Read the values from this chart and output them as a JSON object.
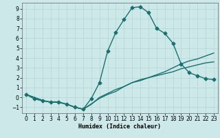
{
  "xlabel": "Humidex (Indice chaleur)",
  "background_color": "#cce8e8",
  "grid_color": "#b8d8d8",
  "line_color": "#1a7070",
  "xlim": [
    -0.5,
    23.5
  ],
  "ylim": [
    -1.6,
    9.6
  ],
  "xticks": [
    0,
    1,
    2,
    3,
    4,
    5,
    6,
    7,
    8,
    9,
    10,
    11,
    12,
    13,
    14,
    15,
    16,
    17,
    18,
    19,
    20,
    21,
    22,
    23
  ],
  "yticks": [
    -1,
    0,
    1,
    2,
    3,
    4,
    5,
    6,
    7,
    8,
    9
  ],
  "line1_x": [
    0,
    1,
    2,
    3,
    4,
    5,
    6,
    7,
    8,
    9,
    10,
    11,
    12,
    13,
    14,
    15,
    16,
    17,
    18,
    19,
    20,
    21,
    22,
    23
  ],
  "line1_y": [
    0.3,
    -0.15,
    -0.35,
    -0.45,
    -0.45,
    -0.7,
    -1.0,
    -1.2,
    -0.1,
    1.5,
    4.7,
    6.6,
    7.9,
    9.1,
    9.2,
    8.6,
    7.0,
    6.5,
    5.5,
    3.4,
    2.5,
    2.2,
    1.9,
    1.8
  ],
  "line2_x": [
    0,
    2,
    3,
    4,
    5,
    6,
    7,
    9,
    10,
    11,
    12,
    13,
    14,
    15,
    16,
    17,
    18,
    19,
    20,
    21,
    22,
    23
  ],
  "line2_y": [
    0.3,
    -0.3,
    -0.5,
    -0.5,
    -0.7,
    -1.0,
    -1.2,
    -0.1,
    0.3,
    0.6,
    1.1,
    1.5,
    1.8,
    2.0,
    2.3,
    2.6,
    3.0,
    3.4,
    3.7,
    3.9,
    4.2,
    4.5
  ],
  "line3_x": [
    0,
    2,
    3,
    4,
    5,
    6,
    7,
    8,
    9,
    10,
    11,
    12,
    13,
    14,
    15,
    16,
    17,
    18,
    19,
    20,
    21,
    22,
    23
  ],
  "line3_y": [
    0.3,
    -0.3,
    -0.5,
    -0.5,
    -0.7,
    -1.0,
    -1.2,
    -0.7,
    0.0,
    0.4,
    0.8,
    1.1,
    1.5,
    1.7,
    2.0,
    2.2,
    2.4,
    2.6,
    2.9,
    3.1,
    3.3,
    3.5,
    3.6
  ]
}
